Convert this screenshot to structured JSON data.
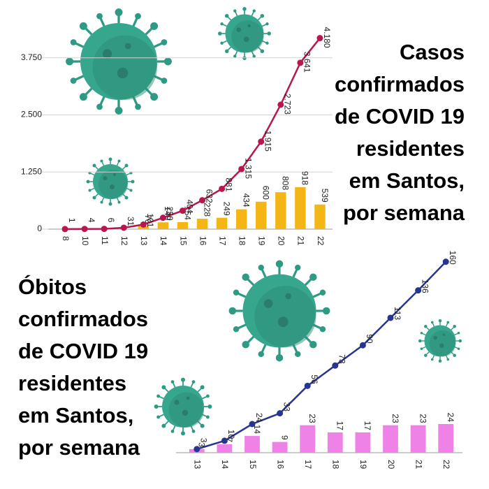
{
  "chart_data": [
    {
      "type": "combo",
      "title": [
        "Casos",
        "confirmados",
        "de COVID 19",
        "residentes",
        "em Santos,",
        "por semana"
      ],
      "categories": [
        "8",
        "10",
        "11",
        "12",
        "13",
        "14",
        "15",
        "16",
        "17",
        "18",
        "19",
        "20",
        "21",
        "22"
      ],
      "ylim": [
        0,
        4800
      ],
      "yticks": [
        0,
        {
          "value": 1250,
          "label": "1.250"
        },
        {
          "value": 2500,
          "label": "2.500"
        },
        {
          "value": 3750,
          "label": "3.750"
        }
      ],
      "grid": true,
      "series": [
        {
          "type": "bar",
          "color": "#f4b616",
          "values": [
            null,
            null,
            null,
            null,
            70,
            149,
            154,
            228,
            249,
            434,
            600,
            808,
            918,
            539
          ]
        },
        {
          "type": "line",
          "color": "#b8174e",
          "values": [
            1,
            4,
            6,
            31,
            101,
            250,
            404,
            632,
            881,
            1315,
            1915,
            2723,
            3641,
            4180
          ],
          "value_labels": [
            "1",
            "4",
            "6",
            "31",
            "101",
            "250",
            "404",
            "632",
            "881",
            "1.315",
            "1.915",
            "2.723",
            "3.641",
            "4.180"
          ]
        }
      ]
    },
    {
      "type": "combo",
      "title": [
        "Óbitos",
        "confirmados",
        "de COVID 19",
        "residentes",
        "em Santos,",
        "por semana"
      ],
      "categories": [
        "13",
        "14",
        "15",
        "16",
        "17",
        "18",
        "19",
        "20",
        "21",
        "22"
      ],
      "ylim": [
        0,
        168
      ],
      "grid": false,
      "series": [
        {
          "type": "bar",
          "color": "#ee82e6",
          "values": [
            3,
            7,
            14,
            9,
            23,
            17,
            17,
            23,
            23,
            24
          ]
        },
        {
          "type": "line",
          "color": "#27358f",
          "values": [
            3,
            10,
            24,
            33,
            56,
            73,
            90,
            113,
            136,
            160
          ]
        }
      ]
    }
  ]
}
